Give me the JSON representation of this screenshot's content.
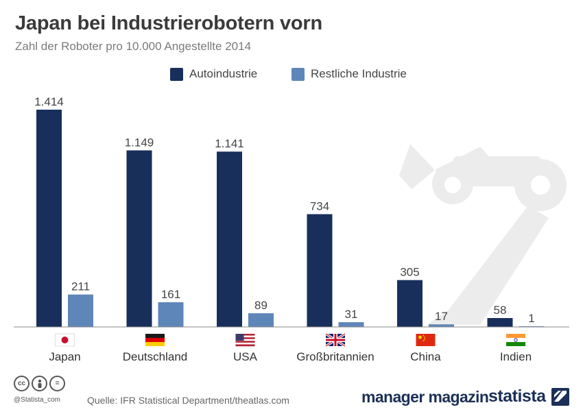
{
  "header": {
    "title": "Japan bei Industrierobotern vorn",
    "subtitle": "Zahl der Roboter pro 10.000 Angestellte 2014"
  },
  "colors": {
    "auto": "#182f5c",
    "rest": "#5f86b9",
    "watermark": "#ececec",
    "axis": "#888888"
  },
  "chart_data": {
    "type": "bar",
    "title": "Japan bei Industrierobotern vorn",
    "subtitle": "Zahl der Roboter pro 10.000 Angestellte 2014",
    "categories": [
      "Japan",
      "Deutschland",
      "USA",
      "Großbritannien",
      "China",
      "Indien"
    ],
    "series": [
      {
        "name": "Autoindustrie",
        "values": [
          1414,
          1149,
          1141,
          734,
          305,
          58
        ],
        "labels": [
          "1.414",
          "1.149",
          "1.141",
          "734",
          "305",
          "58"
        ]
      },
      {
        "name": "Restliche Industrie",
        "values": [
          211,
          161,
          89,
          31,
          17,
          1
        ],
        "labels": [
          "211",
          "161",
          "89",
          "31",
          "17",
          "1"
        ]
      }
    ],
    "legend_position": "top-center",
    "grid": false,
    "ylim": [
      0,
      1414
    ]
  },
  "flags": [
    {
      "country": "Japan",
      "icon": "japan-flag-icon"
    },
    {
      "country": "Deutschland",
      "icon": "germany-flag-icon"
    },
    {
      "country": "USA",
      "icon": "usa-flag-icon"
    },
    {
      "country": "Großbritannien",
      "icon": "uk-flag-icon"
    },
    {
      "country": "China",
      "icon": "china-flag-icon"
    },
    {
      "country": "Indien",
      "icon": "india-flag-icon"
    }
  ],
  "footer": {
    "credit": "@Statista_com",
    "source": "Quelle: IFR Statistical Department/theatlas.com",
    "brand_partner": "manager magazin",
    "brand_main": "statista",
    "cc_icons": [
      "cc",
      "by",
      "nd"
    ]
  }
}
